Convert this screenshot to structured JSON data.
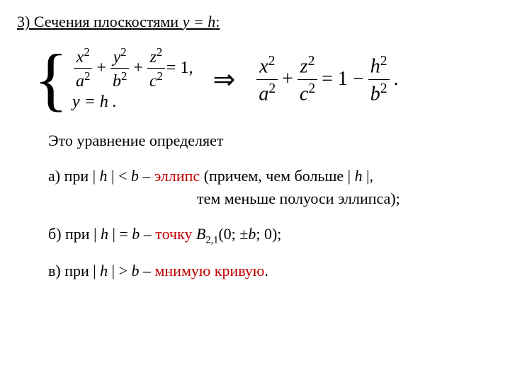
{
  "title": {
    "prefix": "3) Сечения плоскостями ",
    "plane": "y = h",
    "suffix": ":"
  },
  "equations": {
    "system": {
      "eq1": {
        "t1_num": "x",
        "t1_den": "a",
        "t2_num": "y",
        "t2_den": "b",
        "t3_num": "z",
        "t3_den": "c",
        "exp": "2",
        "eq_one": " = 1,"
      },
      "eq2": "y = h ."
    },
    "implies": "⇒",
    "result": {
      "t1_num": "x",
      "t1_den": "a",
      "t2_num": "z",
      "t2_den": "c",
      "rhs_prefix": " = 1 − ",
      "r_num": "h",
      "r_den": "b",
      "exp": "2",
      "tail": " ."
    }
  },
  "body": {
    "intro": "Это уравнение определяет",
    "case_a": {
      "prefix": "а)  при  | ",
      "h": "h",
      "mid1": " | < ",
      "b": "b",
      "mid2": " – ",
      "ellipse": "эллипс",
      "tail1": "  (причем, чем больше  | ",
      "h2": "h",
      "tail2": " |,",
      "line2": "тем меньше полуоси эллипса);"
    },
    "case_b": {
      "prefix": "б) при  | ",
      "h": "h",
      "mid1": " | = ",
      "b": "b",
      "mid2": " – ",
      "point": "точку",
      "space": "  ",
      "Blabel": "B",
      "Bsub": "2,1",
      "coords_open": "(0; ±",
      "b2": "b",
      "coords_close": "; 0);"
    },
    "case_c": {
      "prefix": "в) при  | ",
      "h": "h",
      "mid1": " | > ",
      "b": "b",
      "mid2": "   – ",
      "imag": "мнимую кривую",
      "tail": "."
    }
  },
  "colors": {
    "red": "#c00000",
    "text": "#000000",
    "bg": "#ffffff"
  },
  "fontsizes": {
    "title": 22,
    "body": 22,
    "math": 24,
    "result_math": 28
  }
}
